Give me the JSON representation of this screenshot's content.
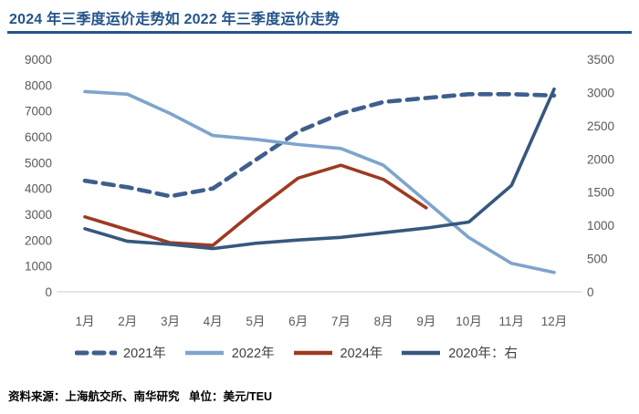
{
  "header": {
    "title": "2024 年三季度运价走势如 2022 年三季度运价走势"
  },
  "footer": {
    "source": "资料来源：上海航交所、南华研究",
    "unit": "单位：美元/TEU"
  },
  "colors": {
    "title": "#24548b",
    "axis_text": "#595959",
    "axis_line": "#d6d6d6",
    "background": "#ffffff"
  },
  "chart_data": {
    "type": "line",
    "title": "2024 年三季度运价走势如 2022 年三季度运价走势",
    "xlabel": "",
    "ylabel": "",
    "unit": "美元/TEU",
    "legend_position": "bottom",
    "grid": false,
    "categories": [
      "1月",
      "2月",
      "3月",
      "4月",
      "5月",
      "6月",
      "7月",
      "8月",
      "9月",
      "10月",
      "11月",
      "12月"
    ],
    "axes": {
      "left": {
        "min": 0,
        "max": 9000,
        "step": 1000
      },
      "right": {
        "min": 0,
        "max": 3500,
        "step": 500
      }
    },
    "series": [
      {
        "name": "2021年",
        "axis": "left",
        "style": "dashed",
        "color": "#3e5f8e",
        "values": [
          4300,
          4050,
          3700,
          4000,
          5100,
          6200,
          6900,
          7350,
          7500,
          7650,
          7650,
          7600
        ]
      },
      {
        "name": "2022年",
        "axis": "left",
        "style": "solid",
        "color": "#7ea4cc",
        "values": [
          7750,
          7650,
          6900,
          6050,
          5900,
          5700,
          5550,
          4900,
          3500,
          2100,
          1100,
          750
        ]
      },
      {
        "name": "2024年",
        "axis": "left",
        "style": "solid",
        "color": "#9e3a22",
        "values": [
          2900,
          2400,
          1900,
          1800,
          3150,
          4400,
          4900,
          4350,
          3250,
          null,
          null,
          null
        ]
      },
      {
        "name": "2020年：右",
        "axis": "right",
        "style": "solid",
        "color": "#36587e",
        "values": [
          950,
          760,
          715,
          650,
          730,
          780,
          820,
          890,
          960,
          1050,
          1600,
          3050
        ]
      }
    ]
  }
}
